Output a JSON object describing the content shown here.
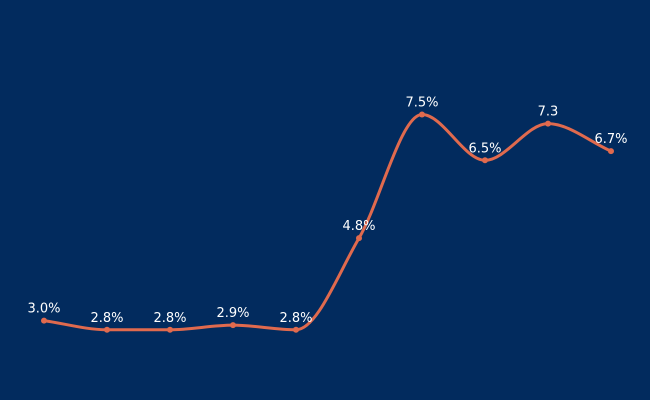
{
  "colors": {
    "background": "#022b5e",
    "line": "#e06a4e",
    "label": "#ffffff"
  },
  "chart_data": {
    "type": "line",
    "title": "",
    "xlabel": "",
    "ylabel": "",
    "grid": false,
    "legend": "none",
    "x": [
      1,
      2,
      3,
      4,
      5,
      6,
      7,
      8,
      9,
      10
    ],
    "ylim": [
      0,
      10
    ],
    "series": [
      {
        "values": [
          3.0,
          2.8,
          2.8,
          2.9,
          2.8,
          4.8,
          7.5,
          6.5,
          7.3,
          6.7
        ],
        "labels": [
          "3.0%",
          "2.8%",
          "2.8%",
          "2.9%",
          "2.8%",
          "4.8%",
          "7.5%",
          "6.5%",
          "7.3",
          "6.7%"
        ]
      }
    ]
  }
}
